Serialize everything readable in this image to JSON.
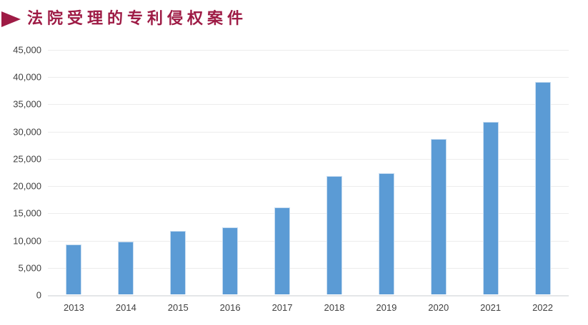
{
  "header": {
    "bullet_icon": "right-triangle-icon",
    "title": "法院受理的专利侵权案件",
    "title_color": "#9e1b45"
  },
  "chart_data": {
    "type": "bar",
    "title": "法院受理的专利侵权案件",
    "categories": [
      "2013",
      "2014",
      "2015",
      "2016",
      "2017",
      "2018",
      "2019",
      "2020",
      "2021",
      "2022"
    ],
    "values": [
      9195,
      9648,
      11607,
      12357,
      16010,
      21699,
      22272,
      28528,
      31618,
      38970
    ],
    "xlabel": "",
    "ylabel": "",
    "ylim": [
      0,
      45000
    ],
    "ytick_step": 5000,
    "ytick_labels": [
      "0",
      "5,000",
      "10,000",
      "15,000",
      "20,000",
      "25,000",
      "30,000",
      "35,000",
      "40,000",
      "45,000"
    ],
    "grid": "horizontal",
    "legend": false,
    "bar_color": "#5b9bd5",
    "bar_edge_color": "#c8ddf1",
    "gridline_color": "#ececec",
    "tick_label_color": "#3f3f3f"
  }
}
